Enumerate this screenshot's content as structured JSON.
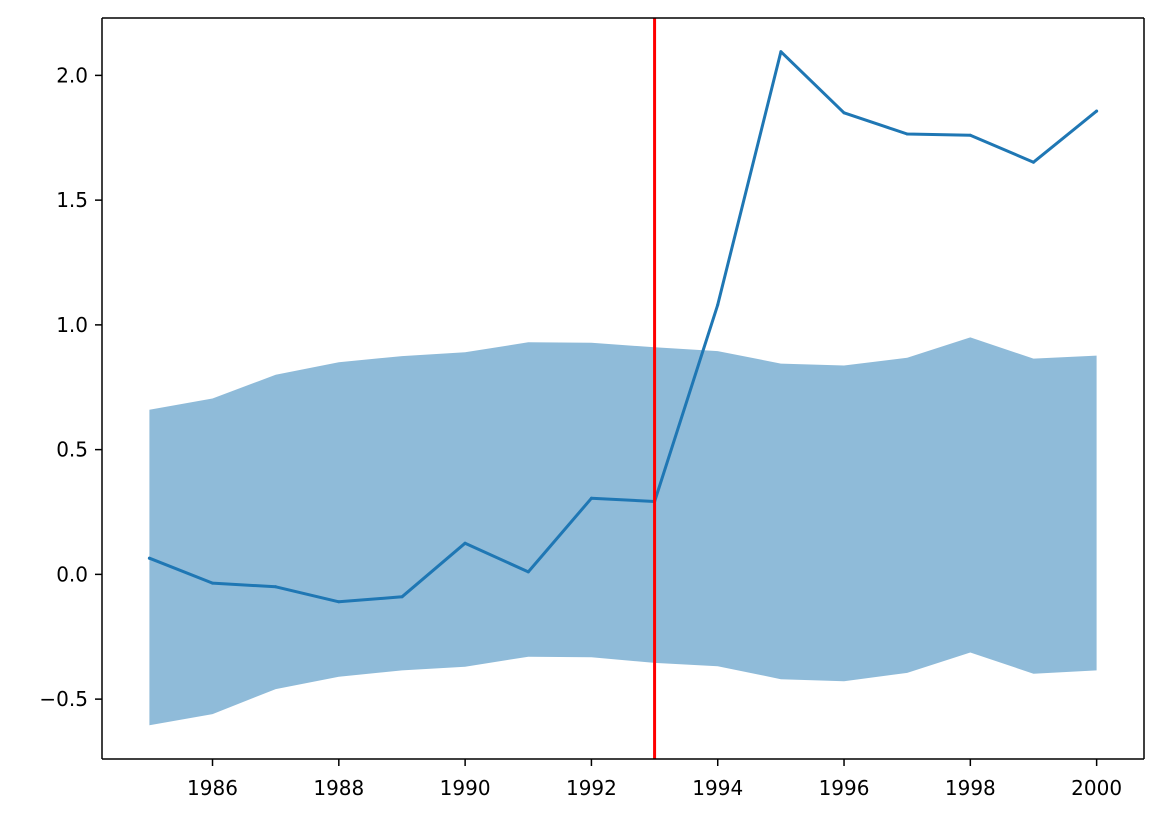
{
  "chart_data": {
    "type": "line",
    "title": "",
    "xlabel": "",
    "ylabel": "",
    "xlim": [
      1984.25,
      2000.75
    ],
    "ylim": [
      -0.74,
      2.23
    ],
    "grid": false,
    "x": [
      1985,
      1986,
      1987,
      1988,
      1989,
      1990,
      1991,
      1992,
      1993,
      1994,
      1995,
      1996,
      1997,
      1998,
      1999,
      2000
    ],
    "series": [
      {
        "values": [
          0.065,
          -0.035,
          -0.05,
          -0.11,
          -0.09,
          0.125,
          0.01,
          0.305,
          0.292,
          1.08,
          2.095,
          1.85,
          1.765,
          1.76,
          1.652,
          1.857
        ],
        "color": "#1f77b4"
      }
    ],
    "band": {
      "lower": [
        -0.605,
        -0.56,
        -0.46,
        -0.41,
        -0.385,
        -0.37,
        -0.33,
        -0.332,
        -0.355,
        -0.368,
        -0.42,
        -0.428,
        -0.395,
        -0.313,
        -0.398,
        -0.385
      ],
      "upper": [
        0.66,
        0.705,
        0.8,
        0.85,
        0.875,
        0.89,
        0.93,
        0.928,
        0.91,
        0.895,
        0.845,
        0.837,
        0.868,
        0.95,
        0.865,
        0.877
      ],
      "color": "#1f77b4",
      "opacity": 0.5
    },
    "vline": {
      "x": 1993,
      "color": "#ff0000"
    },
    "xticks": [
      1986,
      1988,
      1990,
      1992,
      1994,
      1996,
      1998,
      2000
    ],
    "xtick_labels": [
      "1986",
      "1988",
      "1990",
      "1992",
      "1994",
      "1996",
      "1998",
      "2000"
    ],
    "yticks": [
      -0.5,
      0.0,
      0.5,
      1.0,
      1.5,
      2.0
    ],
    "ytick_labels": [
      "−0.5",
      "0.0",
      "0.5",
      "1.0",
      "1.5",
      "2.0"
    ]
  }
}
